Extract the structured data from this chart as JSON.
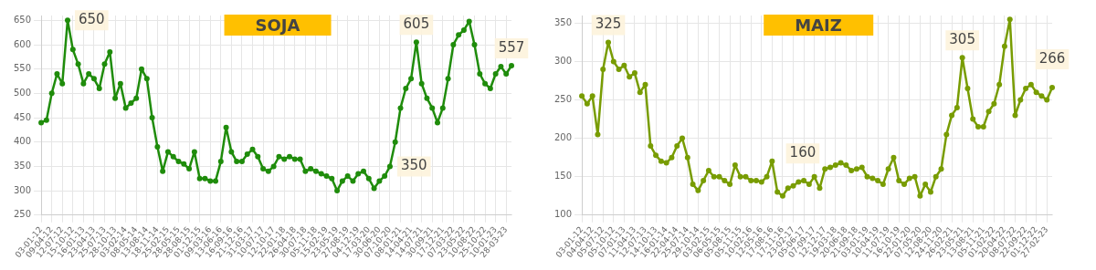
{
  "chart_data": [
    {
      "type": "line",
      "title": "SOJA",
      "categories": [
        "03-01-12",
        null,
        "09-04-12",
        null,
        "12-07-12",
        null,
        "15-10-12",
        null,
        "16-01-13",
        null,
        "23-04-13",
        null,
        "25-07-13",
        null,
        "28-10-13",
        null,
        "03-02-14",
        null,
        "08-05-14",
        null,
        "13-08-14",
        null,
        "18-11-14",
        null,
        "25-02-15",
        null,
        "28-05-15",
        null,
        "28-08-15",
        null,
        "01-12-15",
        null,
        "09-03-16",
        null,
        "13-06-16",
        null,
        "16-09-16",
        null,
        "21-12-16",
        null,
        "31-03-17",
        null,
        "10-07-17",
        null,
        "12-10-17",
        null,
        "22-01-18",
        null,
        "26-04-18",
        null,
        "30-07-18",
        null,
        "05-11-18",
        null,
        "15-02-19",
        null,
        "23-05-19",
        null,
        "27-08-19",
        null,
        "04-12-19",
        null,
        "17-03-20",
        null,
        "30-06-20",
        null,
        "07-10-20",
        null,
        "08-01-21",
        null,
        "14-04-21",
        null,
        "14-07-21",
        null,
        "30-09-21",
        null,
        "17-12-21",
        null,
        "07-03-22",
        null,
        "23-05-22",
        null,
        "10-08-22",
        null,
        "25-10-22",
        null,
        "10-01-23",
        null,
        "28-03-23",
        null
      ],
      "series": [
        {
          "color": "#1f8c0b",
          "values": [
            440,
            445,
            500,
            540,
            520,
            650,
            590,
            560,
            520,
            540,
            530,
            510,
            560,
            585,
            490,
            520,
            470,
            480,
            490,
            550,
            530,
            450,
            390,
            340,
            380,
            370,
            360,
            355,
            345,
            380,
            325,
            325,
            320,
            320,
            360,
            430,
            380,
            360,
            360,
            375,
            385,
            370,
            345,
            340,
            350,
            370,
            365,
            370,
            365,
            365,
            340,
            345,
            340,
            335,
            330,
            325,
            300,
            320,
            330,
            320,
            335,
            340,
            325,
            305,
            320,
            330,
            350,
            400,
            470,
            510,
            530,
            605,
            520,
            490,
            470,
            440,
            470,
            530,
            600,
            620,
            630,
            648,
            600,
            540,
            520,
            510,
            540,
            555,
            540,
            557
          ]
        }
      ],
      "ylim": [
        250,
        660
      ],
      "yticks": [
        250,
        300,
        350,
        400,
        450,
        500,
        550,
        600,
        650
      ],
      "grid": true,
      "marker": "circle",
      "legend": false,
      "annotations": [
        {
          "text": "650",
          "y": 650
        },
        {
          "text": "350",
          "x": "07-10-20",
          "y": 350
        },
        {
          "text": "605",
          "y": 605
        },
        {
          "text": "557",
          "y": 557
        }
      ]
    },
    {
      "type": "line",
      "title": "MAIZ",
      "categories": [
        "03-01-12",
        null,
        "04-04-12",
        null,
        "05-07-12",
        null,
        "05-10-12",
        null,
        "07-01-13",
        null,
        "11-04-13",
        null,
        "12-07-13",
        null,
        "14-10-13",
        null,
        "16-01-14",
        null,
        "22-04-14",
        null,
        "25-07-14",
        null,
        "29-10-14",
        null,
        "03-02-15",
        null,
        "06-05-15",
        null,
        "05-08-15",
        null,
        "05-11-15",
        null,
        "10-02-16",
        null,
        "12-05-16",
        null,
        "17-08-16",
        null,
        "17-11-16",
        null,
        "23-02-17",
        null,
        "05-06-17",
        null,
        "07-09-17",
        null,
        "12-12-17",
        null,
        "19-03-18",
        null,
        "20-06-18",
        null,
        "21-09-18",
        null,
        "03-01-19",
        null,
        "10-04-19",
        null,
        "11-07-19",
        null,
        "16-10-19",
        null,
        "22-01-20",
        null,
        "07-05-20",
        null,
        "12-08-20",
        null,
        "24-11-20",
        null,
        "26-02-21",
        null,
        "23-05-21",
        null,
        "13-08-21",
        null,
        "05-11-21",
        null,
        "01-02-22",
        null,
        "20-04-22",
        null,
        "08-07-22",
        null,
        "22-09-22",
        null,
        "01-12-22",
        null,
        "27-02-23",
        null
      ],
      "series": [
        {
          "color": "#789c02",
          "values": [
            255,
            245,
            255,
            205,
            290,
            325,
            300,
            290,
            295,
            280,
            285,
            260,
            270,
            190,
            178,
            170,
            168,
            175,
            190,
            200,
            175,
            140,
            132,
            145,
            158,
            150,
            150,
            145,
            140,
            165,
            150,
            150,
            145,
            145,
            143,
            150,
            170,
            130,
            125,
            135,
            138,
            143,
            145,
            140,
            150,
            135,
            160,
            162,
            165,
            168,
            165,
            158,
            160,
            162,
            150,
            148,
            145,
            140,
            160,
            175,
            145,
            140,
            148,
            150,
            125,
            140,
            130,
            150,
            160,
            205,
            230,
            240,
            305,
            265,
            225,
            215,
            215,
            235,
            245,
            270,
            320,
            355,
            230,
            250,
            265,
            270,
            260,
            255,
            250,
            266
          ]
        }
      ],
      "ylim": [
        100,
        360
      ],
      "yticks": [
        100,
        150,
        200,
        250,
        300,
        350
      ],
      "grid": true,
      "marker": "circle",
      "legend": false,
      "annotations": [
        {
          "text": "325",
          "y": 325
        },
        {
          "text": "160",
          "x": "12-12-17",
          "y": 160
        },
        {
          "text": "305",
          "x": "23-05-21",
          "y": 305
        },
        {
          "text": "266",
          "y": 266
        }
      ]
    }
  ]
}
